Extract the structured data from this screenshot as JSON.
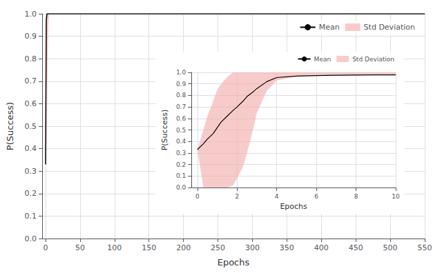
{
  "chart_data": [
    {
      "type": "line",
      "xlabel": "Epochs",
      "ylabel": "P(Success)",
      "xlim": [
        -5,
        550
      ],
      "ylim": [
        0.0,
        1.0
      ],
      "xticks": [
        0,
        50,
        100,
        150,
        200,
        250,
        300,
        350,
        400,
        450,
        500,
        550
      ],
      "yticks": [
        {
          "value": 0.0,
          "label": "0.0"
        },
        0.1,
        0.2,
        0.3,
        0.4,
        0.5,
        0.6,
        0.7,
        0.8,
        0.9,
        {
          "value": 1.0,
          "label": "1.0"
        }
      ],
      "grid": true,
      "legend": "upper right",
      "x": [
        0,
        1,
        2,
        3,
        4,
        5,
        10,
        20,
        50,
        100,
        200,
        300,
        400,
        500,
        550
      ],
      "series": [
        {
          "name": "Mean",
          "type": "line",
          "color": "#000000",
          "values": [
            0.33,
            0.97,
            1.0,
            1.0,
            1.0,
            1.0,
            1.0,
            1.0,
            1.0,
            1.0,
            1.0,
            1.0,
            1.0,
            1.0,
            1.0
          ]
        },
        {
          "name": "Std Deviation",
          "type": "band",
          "color": "#f4a9a8",
          "lower": [
            0.33,
            0.33,
            0.5,
            0.8,
            0.95,
            1.0,
            1.0,
            1.0,
            1.0,
            1.0,
            1.0,
            1.0,
            1.0,
            1.0,
            1.0
          ],
          "upper": [
            0.33,
            1.0,
            1.0,
            1.0,
            1.0,
            1.0,
            1.0,
            1.0,
            1.0,
            1.0,
            1.0,
            1.0,
            1.0,
            1.0,
            1.0
          ]
        }
      ]
    },
    {
      "type": "line",
      "xlabel": "Epochs",
      "ylabel": "P(Success)",
      "xlim": [
        -0.3,
        10
      ],
      "ylim": [
        0.0,
        1.0
      ],
      "xticks": [
        0,
        2,
        4,
        6,
        8,
        10
      ],
      "yticks": [
        {
          "value": 0.0,
          "label": "0.0"
        },
        0.1,
        0.2,
        0.3,
        0.4,
        0.5,
        0.6,
        0.7,
        0.8,
        0.9,
        {
          "value": 1.0,
          "label": "1.0"
        }
      ],
      "grid": true,
      "legend": "upper right",
      "x": [
        0,
        0.3,
        0.5,
        0.8,
        1.0,
        1.2,
        1.5,
        1.8,
        2.0,
        2.3,
        2.5,
        2.8,
        3.0,
        3.5,
        4.0,
        5.0,
        6.0,
        7.0,
        8.0,
        9.0,
        10.0
      ],
      "series": [
        {
          "name": "Mean",
          "type": "line",
          "color": "#000000",
          "values": [
            0.33,
            0.38,
            0.42,
            0.47,
            0.52,
            0.57,
            0.62,
            0.67,
            0.7,
            0.75,
            0.79,
            0.83,
            0.86,
            0.92,
            0.955,
            0.968,
            0.972,
            0.975,
            0.977,
            0.978,
            0.978
          ]
        },
        {
          "name": "Std Deviation",
          "type": "band",
          "color": "#f4a9a8",
          "lower": [
            0.33,
            0.0,
            0.0,
            0.0,
            0.0,
            0.0,
            0.0,
            0.02,
            0.08,
            0.18,
            0.3,
            0.5,
            0.65,
            0.84,
            0.93,
            0.965,
            0.97,
            0.973,
            0.975,
            0.977,
            0.977
          ],
          "upper": [
            0.33,
            0.5,
            0.62,
            0.75,
            0.85,
            0.9,
            0.96,
            1.0,
            1.0,
            1.0,
            1.0,
            1.0,
            1.0,
            1.0,
            1.0,
            1.0,
            1.0,
            1.0,
            1.0,
            1.0,
            1.0
          ]
        }
      ]
    }
  ]
}
